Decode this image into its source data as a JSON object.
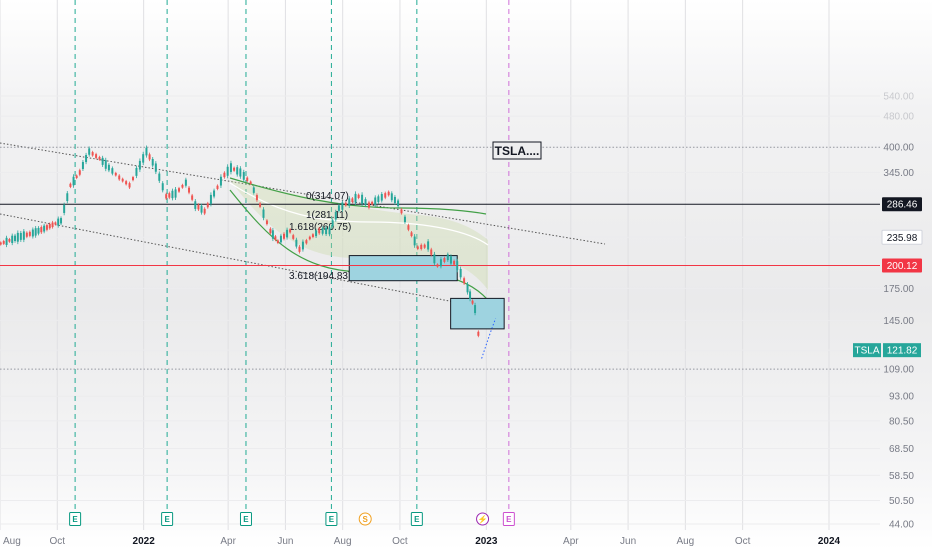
{
  "chart_data": {
    "type": "line",
    "symbol": "TSLA",
    "y_axis": {
      "scale": "log",
      "range": [
        44,
        540
      ],
      "tick_labels": [
        "540.00",
        "480.00",
        "400.00",
        "345.00",
        "290.00",
        "235.98",
        "200.12",
        "175.00",
        "145.00",
        "121.82",
        "109.00",
        "93.00",
        "80.50",
        "68.50",
        "58.50",
        "50.50",
        "44.00"
      ],
      "faded_tick_labels": [
        "540.00",
        "480.00"
      ]
    },
    "x_axis": {
      "labels": [
        "Aug",
        "Oct",
        "2022",
        "Apr",
        "Jun",
        "Aug",
        "Oct",
        "2023",
        "Apr",
        "Jun",
        "Aug",
        "Oct",
        "2024"
      ],
      "bold_labels": [
        "2022",
        "2023",
        "2024"
      ]
    },
    "price_badges": [
      {
        "text": "286.46",
        "value": 286.46,
        "style": "dark"
      },
      {
        "text": "235.98",
        "value": 235.98,
        "style": "light"
      },
      {
        "text": "200.12",
        "value": 200.12,
        "style": "red"
      },
      {
        "symbol": "TSLA",
        "text": "121.82",
        "value": 121.82,
        "style": "teal"
      }
    ],
    "horizontal_lines": [
      {
        "value": 286.46,
        "color": "#131722",
        "style": "solid"
      },
      {
        "value": 200.12,
        "color": "#f23645",
        "style": "solid"
      },
      {
        "value": 400.0,
        "color": "#9598a1",
        "style": "dotted"
      },
      {
        "value": 109.0,
        "color": "#9598a1",
        "style": "dotted"
      }
    ],
    "fib_levels": [
      {
        "label": "0(314.07)",
        "ratio": 0,
        "value": 314.07
      },
      {
        "label": "1(281.11)",
        "ratio": 1,
        "value": 281.11
      },
      {
        "label": "1.618(260.75)",
        "ratio": 1.618,
        "value": 260.75
      },
      {
        "label": "3.618(194.83)",
        "ratio": 3.618,
        "value": 194.83
      }
    ],
    "rectangles": [
      {
        "x_range": [
          "2022-08-08",
          "2022-12-01"
        ],
        "y_range": [
          183,
          212
        ]
      },
      {
        "x_range": [
          "2022-11-24",
          "2023-01-20"
        ],
        "y_range": [
          138,
          165
        ]
      }
    ],
    "annotation": "TSLA....",
    "event_markers": [
      {
        "date": "2021-10-20",
        "glyph": "E",
        "kind": "earnings",
        "color": "#089981"
      },
      {
        "date": "2022-01-26",
        "glyph": "E",
        "kind": "earnings",
        "color": "#089981"
      },
      {
        "date": "2022-04-20",
        "glyph": "E",
        "kind": "earnings",
        "color": "#089981"
      },
      {
        "date": "2022-07-20",
        "glyph": "E",
        "kind": "earnings",
        "color": "#089981"
      },
      {
        "date": "2022-08-25",
        "glyph": "S",
        "kind": "split",
        "color": "#f0a020"
      },
      {
        "date": "2022-10-19",
        "glyph": "E",
        "kind": "earnings",
        "color": "#089981"
      },
      {
        "date": "2022-12-28",
        "glyph": "⚡",
        "kind": "event",
        "color": "#9c27b0"
      },
      {
        "date": "2023-01-25",
        "glyph": "E",
        "kind": "earnings-upcoming",
        "color": "#cc4fd0"
      }
    ],
    "series": [
      {
        "x": [
          "2021-07-05",
          "2021-07-20",
          "2021-08-05",
          "2021-08-20",
          "2021-09-05",
          "2021-09-20",
          "2021-10-05",
          "2021-10-15",
          "2021-10-25",
          "2021-11-04",
          "2021-11-15",
          "2021-11-25",
          "2021-12-06",
          "2021-12-17",
          "2021-12-28",
          "2022-01-04",
          "2022-01-14",
          "2022-01-25",
          "2022-02-04",
          "2022-02-15",
          "2022-02-25",
          "2022-03-07",
          "2022-03-17",
          "2022-03-28",
          "2022-04-04",
          "2022-04-14",
          "2022-04-25",
          "2022-05-05",
          "2022-05-16",
          "2022-05-24",
          "2022-06-06",
          "2022-06-16",
          "2022-06-27",
          "2022-07-07",
          "2022-07-18",
          "2022-07-28",
          "2022-08-08",
          "2022-08-18",
          "2022-08-29",
          "2022-09-08",
          "2022-09-19",
          "2022-09-29",
          "2022-10-10",
          "2022-10-20",
          "2022-10-31",
          "2022-11-10",
          "2022-11-21",
          "2022-12-01",
          "2022-12-12",
          "2022-12-20",
          "2022-12-27"
        ],
        "y": [
          215,
          222,
          229,
          236,
          242,
          250,
          260,
          320,
          345,
          390,
          375,
          355,
          335,
          320,
          360,
          390,
          355,
          300,
          305,
          325,
          285,
          275,
          305,
          340,
          355,
          345,
          325,
          285,
          245,
          230,
          245,
          220,
          235,
          245,
          245,
          280,
          290,
          300,
          285,
          295,
          305,
          288,
          250,
          222,
          225,
          200,
          210,
          200,
          175,
          155,
          116
        ]
      }
    ]
  }
}
